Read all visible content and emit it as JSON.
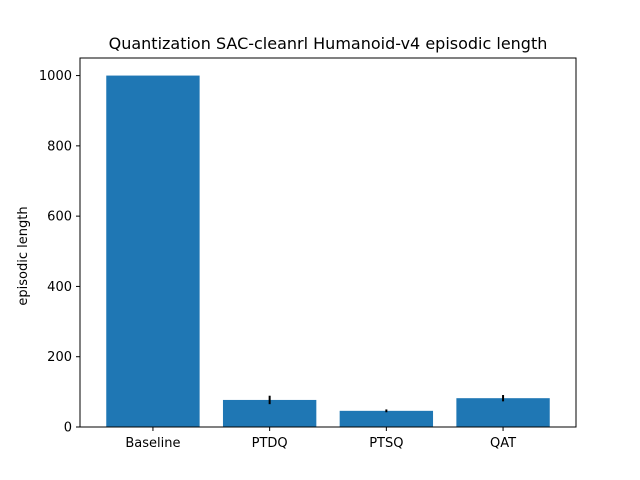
{
  "chart_data": {
    "type": "bar",
    "title": "Quantization SAC-cleanrl Humanoid-v4 episodic length",
    "xlabel": "",
    "ylabel": "episodic length",
    "categories": [
      "Baseline",
      "PTDQ",
      "PTSQ",
      "QAT"
    ],
    "values": [
      1000,
      77,
      46,
      82
    ],
    "errors": [
      0,
      12,
      4,
      9
    ],
    "ylim": [
      0,
      1050
    ],
    "yticks": [
      0,
      200,
      400,
      600,
      800,
      1000
    ],
    "bar_color": "#1f77b4",
    "error_color": "#000000",
    "grid": false
  }
}
